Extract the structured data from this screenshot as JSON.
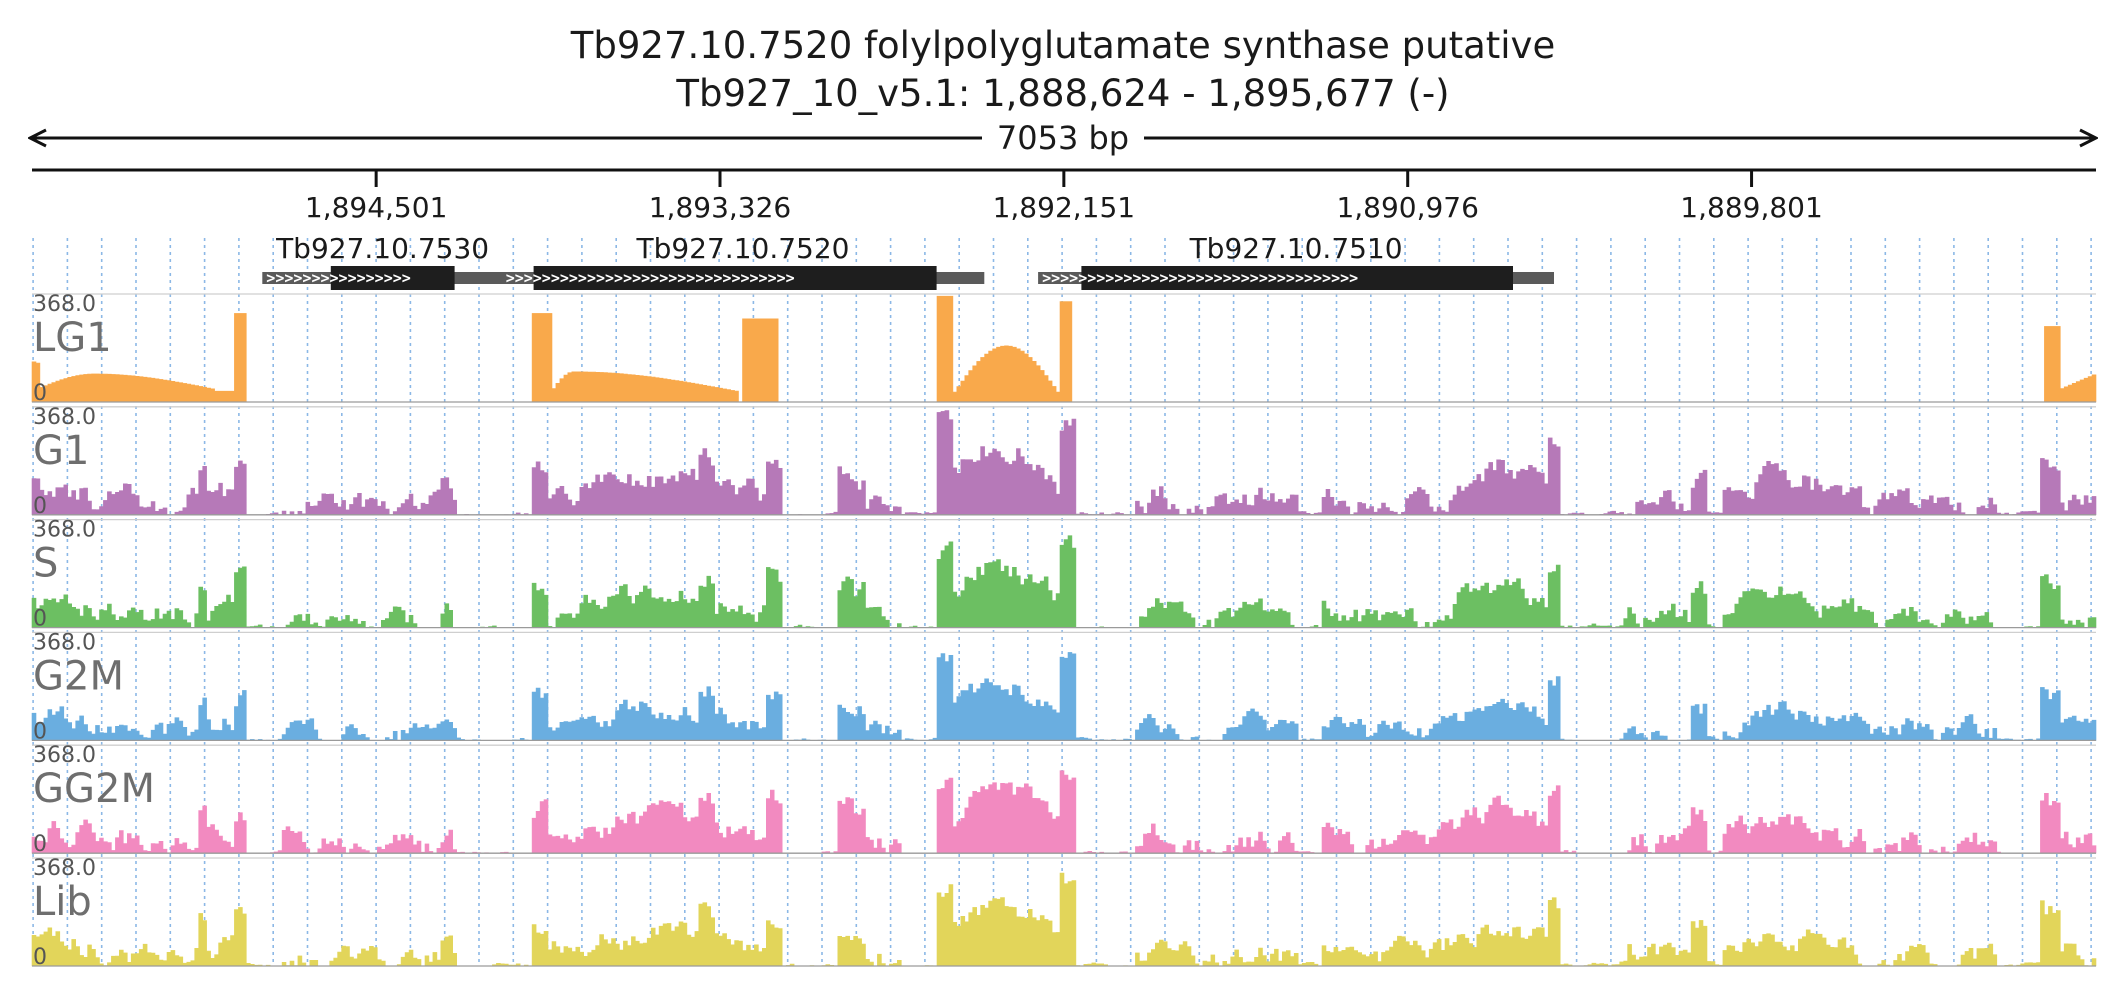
{
  "chart_data": {
    "type": "area",
    "title": "Tb927.10.7520  folylpolyglutamate synthase  putative",
    "subtitle": "Tb927_10_v5.1: 1,888,624 - 1,895,677 (-)",
    "span_label": "7053 bp",
    "region": {
      "start": 1888624,
      "end": 1895677,
      "strand": "-"
    },
    "x_ticks": [
      {
        "label": "1,894,501",
        "value": 1894501
      },
      {
        "label": "1,893,326",
        "value": 1893326
      },
      {
        "label": "1,892,151",
        "value": 1892151
      },
      {
        "label": "1,890,976",
        "value": 1890976
      },
      {
        "label": "1,889,801",
        "value": 1889801
      }
    ],
    "genes": [
      {
        "name": "Tb927.10.7530",
        "start": 1894068,
        "end": 1894890,
        "cds_start": 1894233,
        "cds_end": 1894656
      },
      {
        "name": "Tb927.10.7520",
        "start": 1892423,
        "end": 1894072,
        "cds_start": 1892586,
        "cds_end": 1893963
      },
      {
        "name": "Tb927.10.7510",
        "start": 1890476,
        "end": 1892239,
        "cds_start": 1890616,
        "cds_end": 1892091
      }
    ],
    "y_max_label": "368.0",
    "y_min_label": "0",
    "ylim": [
      0,
      368
    ],
    "tracks": [
      {
        "name": "LG1",
        "color": "#f9a94b",
        "profile": "lg1"
      },
      {
        "name": "G1",
        "color": "#b679b8",
        "profile": "noisy",
        "scale": 1.0,
        "seed": 11
      },
      {
        "name": "S",
        "color": "#6cbf62",
        "profile": "noisy",
        "scale": 0.9,
        "seed": 23
      },
      {
        "name": "G2M",
        "color": "#6aaee0",
        "profile": "noisy",
        "scale": 0.85,
        "seed": 37
      },
      {
        "name": "GG2M",
        "color": "#f28ac0",
        "profile": "noisy",
        "scale": 0.95,
        "seed": 41
      },
      {
        "name": "Lib",
        "color": "#e2d55a",
        "profile": "noisy",
        "scale": 0.9,
        "seed": 53
      }
    ],
    "grid": true
  }
}
